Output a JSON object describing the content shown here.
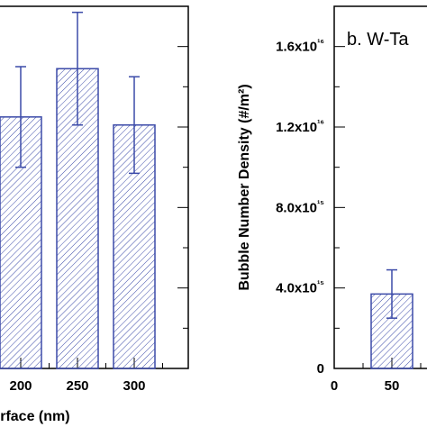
{
  "colors": {
    "bar_stroke": "#3b4aa8",
    "hatch": "#3b4aa8",
    "axis": "#000000"
  },
  "chart_data": [
    {
      "type": "bar",
      "panel": "left (partially visible)",
      "x": [
        200,
        250,
        300
      ],
      "values": [
        1.25e+16,
        1.49e+16,
        1.21e+16
      ],
      "error": [
        2500000000000000.0,
        2800000000000000.0,
        2400000000000000.0
      ],
      "xtick_labels": [
        "200",
        "250",
        "300"
      ],
      "xlabel": "terface (nm)",
      "hatch": "diagonal"
    },
    {
      "type": "bar",
      "panel": "right",
      "title": "b. W-Ta",
      "ylabel": "Bubble Number Density (#/m²)",
      "ylim": [
        0,
        1.8e+16
      ],
      "yticks": [
        0,
        4000000000000000.0,
        8000000000000000.0,
        1.2e+16,
        1.6e+16
      ],
      "ytick_labels": [
        "0",
        "4.0x10¹⁵",
        "8.0x10¹⁵",
        "1.2x10¹⁶",
        "1.6x10¹⁶"
      ],
      "xticks": [
        0,
        50
      ],
      "xtick_labels": [
        "0",
        "50"
      ],
      "x": [
        50
      ],
      "values": [
        3700000000000000.0
      ],
      "error": [
        1200000000000000.0
      ],
      "hatch": "diagonal"
    }
  ]
}
